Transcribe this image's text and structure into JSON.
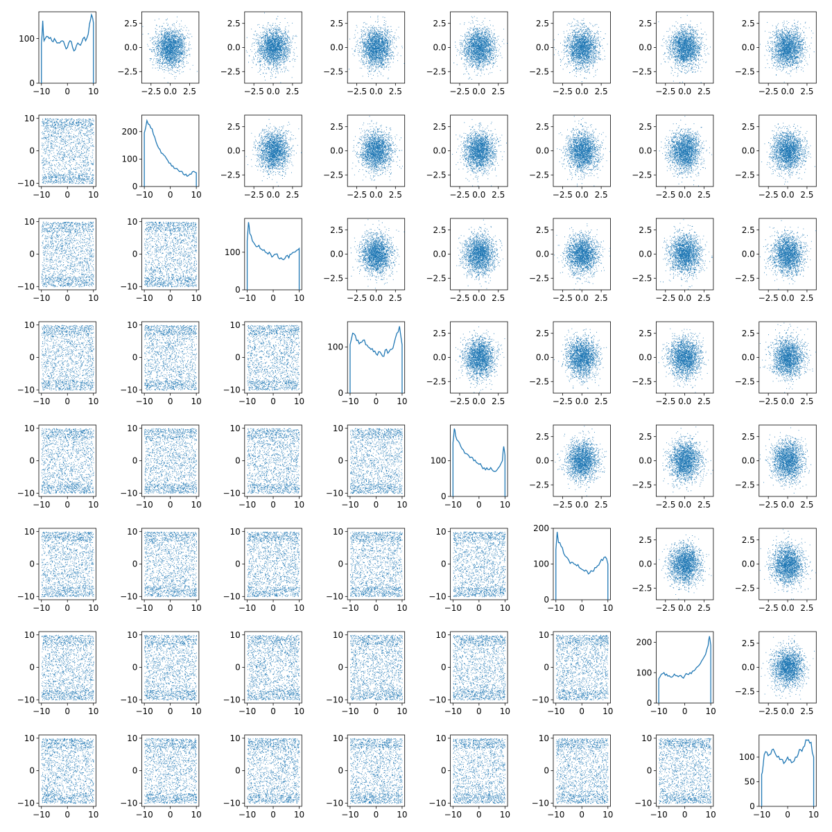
{
  "figure": {
    "rows": 8,
    "cols": 8,
    "color": "#1f77b4",
    "background": "#ffffff"
  },
  "chart_data": {
    "type": "scatter",
    "layout": "pair-plot grid: histograms on the diagonal, uniform-sample scatter plots below the diagonal, gaussian-sample scatter plots above the diagonal",
    "grid": false,
    "lower_triangle": {
      "type": "scatter",
      "xlim": [
        -11,
        11
      ],
      "ylim": [
        -11,
        11
      ],
      "xticks": [
        -10,
        0,
        10
      ],
      "yticks": [
        -10,
        0,
        10
      ],
      "xtick_labels": [
        "−10",
        "0",
        "10"
      ],
      "ytick_labels": [
        "−10",
        "0",
        "10"
      ],
      "x_range": [
        -10,
        10
      ],
      "y_range": [
        -10,
        10
      ]
    },
    "upper_triangle": {
      "type": "scatter",
      "xlim": [
        -3.7,
        3.7
      ],
      "ylim": [
        -3.7,
        3.7
      ],
      "xticks": [
        -2.5,
        0.0,
        2.5
      ],
      "yticks": [
        -2.5,
        0.0,
        2.5
      ],
      "xtick_labels": [
        "−2.5",
        "0.0",
        "2.5"
      ],
      "ytick_labels": [
        "−2.5",
        "0.0",
        "2.5"
      ],
      "distribution": "standard normal"
    },
    "diagonal": [
      {
        "type": "line",
        "xlim": [
          -11,
          11
        ],
        "ylim": [
          0,
          160
        ],
        "xticks": [
          -10,
          0,
          10
        ],
        "yticks": [
          0,
          100
        ],
        "ytick_labels": [
          "0",
          "100"
        ],
        "x": [
          -10,
          -9.5,
          -9,
          -8,
          -7,
          -6,
          -5,
          -4,
          -3,
          -2,
          -1,
          0,
          1,
          2,
          3,
          4,
          5,
          6,
          7,
          8,
          9,
          9.5,
          10
        ],
        "y": [
          90,
          140,
          95,
          105,
          100,
          95,
          100,
          90,
          90,
          95,
          85,
          80,
          95,
          80,
          75,
          90,
          85,
          100,
          95,
          110,
          145,
          150,
          135
        ]
      },
      {
        "type": "line",
        "xlim": [
          -11,
          11
        ],
        "ylim": [
          0,
          260
        ],
        "xticks": [
          -10,
          0,
          10
        ],
        "yticks": [
          0,
          100,
          200
        ],
        "ytick_labels": [
          "0",
          "100",
          "200"
        ],
        "x": [
          -10,
          -9,
          -8,
          -7,
          -6,
          -5,
          -4,
          -3,
          -2,
          -1,
          0,
          1,
          2,
          3,
          4,
          5,
          6,
          7,
          8,
          9,
          10
        ],
        "y": [
          195,
          240,
          225,
          210,
          180,
          150,
          135,
          120,
          110,
          95,
          85,
          75,
          65,
          60,
          55,
          45,
          45,
          40,
          45,
          55,
          50
        ]
      },
      {
        "type": "line",
        "xlim": [
          -11,
          11
        ],
        "ylim": [
          0,
          190
        ],
        "xticks": [
          -10,
          0,
          10
        ],
        "yticks": [
          0,
          100
        ],
        "ytick_labels": [
          "0",
          "100"
        ],
        "x": [
          -10,
          -9.5,
          -9,
          -8,
          -7,
          -6,
          -5,
          -4,
          -3,
          -2,
          -1,
          0,
          1,
          2,
          3,
          4,
          5,
          6,
          7,
          8,
          9,
          10
        ],
        "y": [
          130,
          180,
          150,
          130,
          120,
          115,
          110,
          105,
          100,
          95,
          95,
          90,
          95,
          85,
          85,
          80,
          90,
          85,
          95,
          100,
          105,
          110
        ]
      },
      {
        "type": "line",
        "xlim": [
          -11,
          11
        ],
        "ylim": [
          0,
          155
        ],
        "xticks": [
          -10,
          0,
          10
        ],
        "yticks": [
          0,
          100
        ],
        "ytick_labels": [
          "0",
          "100"
        ],
        "x": [
          -10,
          -9,
          -8,
          -7,
          -6,
          -5,
          -4,
          -3,
          -2,
          -1,
          0,
          1,
          2,
          3,
          4,
          5,
          6,
          7,
          8,
          9,
          10
        ],
        "y": [
          105,
          130,
          125,
          115,
          110,
          115,
          105,
          100,
          95,
          90,
          85,
          90,
          85,
          80,
          95,
          90,
          95,
          110,
          130,
          145,
          105
        ]
      },
      {
        "type": "line",
        "xlim": [
          -11,
          11
        ],
        "ylim": [
          0,
          200
        ],
        "xticks": [
          -10,
          0,
          10
        ],
        "yticks": [
          0,
          100
        ],
        "ytick_labels": [
          "0",
          "100"
        ],
        "x": [
          -10,
          -9.5,
          -9,
          -8,
          -7,
          -6,
          -5,
          -4,
          -3,
          -2,
          -1,
          0,
          1,
          2,
          3,
          4,
          5,
          6,
          7,
          8,
          9,
          9.5,
          10
        ],
        "y": [
          150,
          190,
          170,
          155,
          140,
          130,
          120,
          115,
          110,
          100,
          95,
          90,
          85,
          80,
          80,
          75,
          75,
          70,
          75,
          85,
          100,
          140,
          115
        ]
      },
      {
        "type": "line",
        "xlim": [
          -11,
          11
        ],
        "ylim": [
          0,
          200
        ],
        "xticks": [
          -10,
          0,
          10
        ],
        "yticks": [
          0,
          100,
          200
        ],
        "ytick_labels": [
          "0",
          "100",
          "200"
        ],
        "x": [
          -10,
          -9.5,
          -9,
          -8,
          -7,
          -6,
          -5,
          -4,
          -3,
          -2,
          -1,
          0,
          1,
          2,
          3,
          4,
          5,
          6,
          7,
          8,
          9,
          10
        ],
        "y": [
          140,
          190,
          160,
          150,
          130,
          120,
          110,
          105,
          100,
          95,
          90,
          85,
          80,
          80,
          75,
          80,
          90,
          95,
          105,
          110,
          120,
          100
        ]
      },
      {
        "type": "line",
        "xlim": [
          -11,
          11
        ],
        "ylim": [
          0,
          235
        ],
        "xticks": [
          -10,
          0,
          10
        ],
        "yticks": [
          0,
          100,
          200
        ],
        "ytick_labels": [
          "0",
          "100",
          "200"
        ],
        "x": [
          -10,
          -9,
          -8,
          -7,
          -6,
          -5,
          -4,
          -3,
          -2,
          -1,
          0,
          1,
          2,
          3,
          4,
          5,
          6,
          7,
          8,
          9,
          9.5,
          10
        ],
        "y": [
          80,
          95,
          100,
          95,
          90,
          85,
          95,
          90,
          90,
          85,
          90,
          95,
          100,
          105,
          110,
          120,
          130,
          145,
          160,
          190,
          220,
          190
        ]
      },
      {
        "type": "line",
        "xlim": [
          -11,
          11
        ],
        "ylim": [
          0,
          145
        ],
        "xticks": [
          -10,
          0,
          10
        ],
        "yticks": [
          0,
          50,
          100
        ],
        "ytick_labels": [
          "0",
          "50",
          "100"
        ],
        "x": [
          -10,
          -9.5,
          -9,
          -8,
          -7,
          -6,
          -5,
          -4,
          -3,
          -2,
          -1,
          0,
          1,
          2,
          3,
          4,
          5,
          6,
          7,
          8,
          9,
          10
        ],
        "y": [
          65,
          80,
          105,
          110,
          105,
          115,
          110,
          100,
          95,
          95,
          90,
          100,
          95,
          90,
          100,
          105,
          115,
          120,
          135,
          135,
          130,
          100
        ]
      }
    ]
  }
}
